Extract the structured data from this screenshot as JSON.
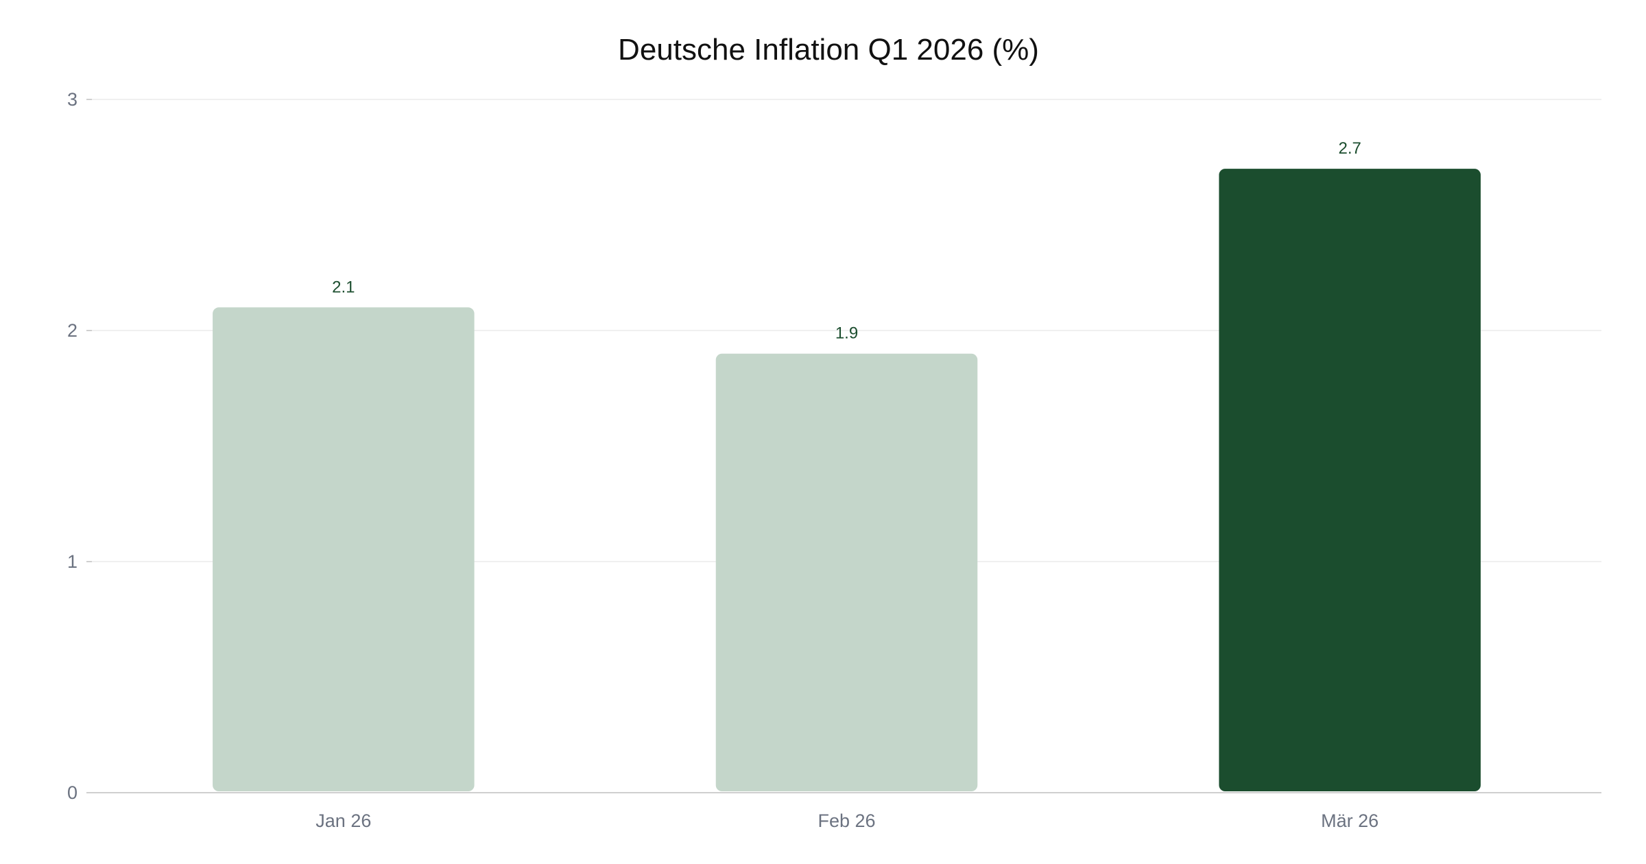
{
  "chart_data": {
    "type": "bar",
    "title": "Deutsche Inflation Q1 2026 (%)",
    "xlabel": "",
    "ylabel": "",
    "categories": [
      "Jan 26",
      "Feb 26",
      "Mär 26"
    ],
    "values": [
      2.1,
      1.9,
      2.7
    ],
    "value_labels": [
      "2.1",
      "1.9",
      "2.7"
    ],
    "ylim": [
      0,
      3
    ],
    "yticks": [
      0,
      1,
      2,
      3
    ],
    "ytick_labels": [
      "0",
      "1",
      "2",
      "3"
    ],
    "grid": true,
    "legend": "none",
    "colors": {
      "default_bar": "#c4d6ca",
      "highlight_bar": "#1b4d2e",
      "data_label": "#1b4d2e"
    },
    "highlight_index": 2
  }
}
